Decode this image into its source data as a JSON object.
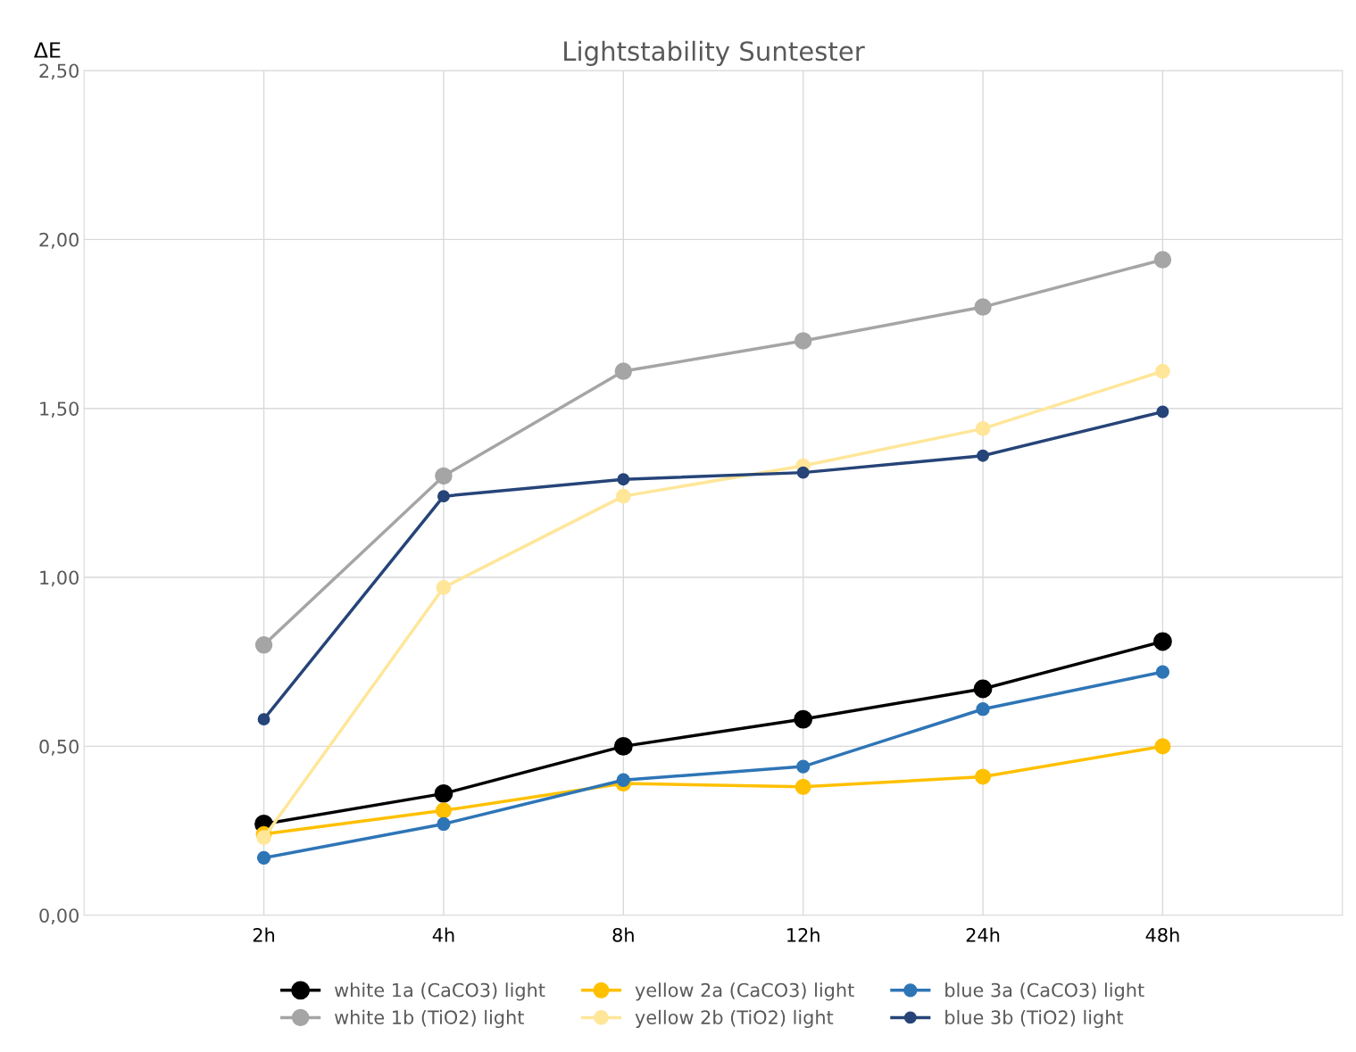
{
  "chart_data": {
    "type": "line",
    "title": "Lightstability Suntester",
    "ylabel": "ΔE",
    "categories": [
      "2h",
      "4h",
      "8h",
      "12h",
      "24h",
      "48h"
    ],
    "series": [
      {
        "name": "white 1a (CaCO3) light",
        "color": "#000000",
        "values": [
          0.27,
          0.36,
          0.5,
          0.58,
          0.67,
          0.81
        ]
      },
      {
        "name": "white 1b (TiO2) light",
        "color": "#a5a5a5",
        "values": [
          0.8,
          1.3,
          1.61,
          1.7,
          1.8,
          1.94
        ]
      },
      {
        "name": "yellow 2a (CaCO3) light",
        "color": "#ffc000",
        "values": [
          0.24,
          0.31,
          0.39,
          0.38,
          0.41,
          0.5
        ]
      },
      {
        "name": "yellow 2b (TiO2) light",
        "color": "#ffe699",
        "values": [
          0.23,
          0.97,
          1.24,
          1.33,
          1.44,
          1.61
        ]
      },
      {
        "name": "blue 3a (CaCO3) light",
        "color": "#2e75b6",
        "values": [
          0.17,
          0.27,
          0.4,
          0.44,
          0.61,
          0.72
        ]
      },
      {
        "name": "blue 3b (TiO2) light",
        "color": "#264478",
        "values": [
          0.58,
          1.24,
          1.29,
          1.31,
          1.36,
          1.49
        ]
      }
    ],
    "ylim": [
      0,
      2.5
    ],
    "yticks": [
      {
        "value": 0,
        "label": "0,00"
      },
      {
        "value": 0.5,
        "label": "0,50"
      },
      {
        "value": 1,
        "label": "1,00"
      },
      {
        "value": 1.5,
        "label": "1,50"
      },
      {
        "value": 2,
        "label": "2,00"
      },
      {
        "value": 2.5,
        "label": "2,50"
      }
    ],
    "grid": true,
    "legend": "bottom",
    "marker": "circle",
    "line_style": "solid"
  }
}
